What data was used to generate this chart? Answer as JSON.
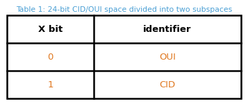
{
  "title": "Table 1: 24-bit CID/OUI space divided into two subspaces",
  "title_color": "#4a9fd4",
  "title_fontsize": 7.8,
  "headers": [
    "X bit",
    "identifier"
  ],
  "header_fontsize": 9.5,
  "header_color": "#000000",
  "rows": [
    [
      "0",
      "OUI"
    ],
    [
      "1",
      "CID"
    ]
  ],
  "row_fontsize": 9.5,
  "row_color": "#e07820",
  "background_color": "#ffffff",
  "border_color": "#000000",
  "col_split": 0.37
}
